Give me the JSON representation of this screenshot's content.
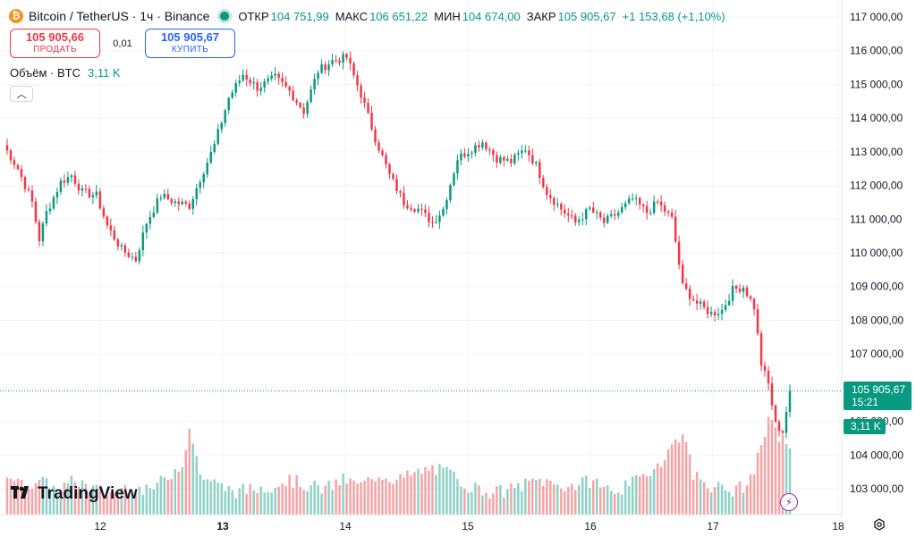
{
  "header": {
    "symbol_title": "Bitcoin / TetherUS · 1ч · Binance",
    "logo_glyph": "₿",
    "ohlc": [
      {
        "label": "ОТКР",
        "value": "104 751,99"
      },
      {
        "label": "МАКС",
        "value": "106 651,22"
      },
      {
        "label": "МИН",
        "value": "104 674,00"
      },
      {
        "label": "ЗАКР",
        "value": "105 905,67"
      }
    ],
    "change": "+1 153,68 (+1,10%)"
  },
  "trade": {
    "sell_price": "105 905,66",
    "sell_label": "ПРОДАТЬ",
    "spread": "0,01",
    "buy_price": "105 905,67",
    "buy_label": "КУПИТЬ"
  },
  "volume_legend": {
    "label": "Объём · BTC",
    "value": "3,11 K"
  },
  "price_tag": {
    "price": "105 905,67",
    "time": "15:21"
  },
  "volume_tag": "3,11 K",
  "brand": {
    "mark": "17",
    "name": "TradingView"
  },
  "colors": {
    "up": "#089981",
    "down": "#f23645",
    "up_volume": "#8fd1c6",
    "down_volume": "#f5a3a5",
    "grid": "#f0f3fa"
  },
  "chart_data": {
    "type": "candlestick",
    "timeframe": "1h",
    "last_price": 105905.67,
    "y_axis": {
      "ylim": [
        102600,
        117300
      ],
      "ticks": [
        "103 000,00",
        "104 000,00",
        "105 000,00",
        "106 000,00",
        "107 000,00",
        "108 000,00",
        "109 000,00",
        "110 000,00",
        "111 000,00",
        "112 000,00",
        "113 000,00",
        "114 000,00",
        "115 000,00",
        "116 000,00",
        "117 000,00"
      ]
    },
    "x_axis": {
      "tick_labels": [
        "12",
        "13",
        "14",
        "15",
        "16",
        "17",
        "18"
      ],
      "bold": [
        "13"
      ]
    },
    "price_anchors": [
      [
        0,
        113200
      ],
      [
        4,
        112500
      ],
      [
        8,
        111500
      ],
      [
        10,
        110400
      ],
      [
        12,
        111200
      ],
      [
        16,
        112100
      ],
      [
        19,
        112300
      ],
      [
        22,
        111800
      ],
      [
        26,
        111700
      ],
      [
        29,
        110800
      ],
      [
        33,
        110100
      ],
      [
        37,
        109800
      ],
      [
        40,
        110900
      ],
      [
        44,
        111700
      ],
      [
        48,
        111500
      ],
      [
        52,
        111400
      ],
      [
        55,
        112200
      ],
      [
        59,
        113200
      ],
      [
        63,
        114600
      ],
      [
        67,
        115300
      ],
      [
        71,
        114900
      ],
      [
        76,
        115200
      ],
      [
        80,
        114800
      ],
      [
        84,
        114200
      ],
      [
        88,
        115400
      ],
      [
        92,
        115700
      ],
      [
        96,
        115800
      ],
      [
        100,
        114700
      ],
      [
        104,
        113400
      ],
      [
        108,
        112300
      ],
      [
        112,
        111500
      ],
      [
        116,
        111300
      ],
      [
        120,
        110900
      ],
      [
        123,
        111300
      ],
      [
        127,
        112800
      ],
      [
        131,
        113100
      ],
      [
        134,
        113300
      ],
      [
        138,
        112800
      ],
      [
        142,
        112700
      ],
      [
        146,
        113100
      ],
      [
        149,
        112600
      ],
      [
        152,
        111800
      ],
      [
        156,
        111300
      ],
      [
        160,
        110900
      ],
      [
        164,
        111300
      ],
      [
        168,
        110900
      ],
      [
        172,
        111200
      ],
      [
        176,
        111600
      ],
      [
        180,
        111200
      ],
      [
        183,
        111500
      ],
      [
        187,
        111000
      ],
      [
        190,
        109000
      ],
      [
        194,
        108500
      ],
      [
        198,
        108200
      ],
      [
        201,
        108300
      ],
      [
        204,
        108900
      ],
      [
        207,
        109000
      ],
      [
        210,
        108400
      ],
      [
        212,
        106700
      ],
      [
        214,
        106100
      ],
      [
        216,
        104900
      ],
      [
        218,
        104700
      ],
      [
        220,
        105906
      ]
    ],
    "volume_anchors": [
      [
        0,
        0.4
      ],
      [
        5,
        0.25
      ],
      [
        10,
        0.3
      ],
      [
        15,
        0.2
      ],
      [
        20,
        0.3
      ],
      [
        25,
        0.22
      ],
      [
        30,
        0.18
      ],
      [
        35,
        0.25
      ],
      [
        40,
        0.2
      ],
      [
        45,
        0.3
      ],
      [
        50,
        0.45
      ],
      [
        52,
        0.75
      ],
      [
        55,
        0.35
      ],
      [
        60,
        0.25
      ],
      [
        65,
        0.2
      ],
      [
        70,
        0.22
      ],
      [
        75,
        0.25
      ],
      [
        80,
        0.3
      ],
      [
        85,
        0.25
      ],
      [
        90,
        0.22
      ],
      [
        95,
        0.3
      ],
      [
        100,
        0.25
      ],
      [
        105,
        0.35
      ],
      [
        110,
        0.3
      ],
      [
        115,
        0.35
      ],
      [
        120,
        0.4
      ],
      [
        125,
        0.35
      ],
      [
        130,
        0.25
      ],
      [
        135,
        0.2
      ],
      [
        140,
        0.2
      ],
      [
        145,
        0.25
      ],
      [
        150,
        0.3
      ],
      [
        155,
        0.25
      ],
      [
        160,
        0.25
      ],
      [
        165,
        0.3
      ],
      [
        170,
        0.2
      ],
      [
        175,
        0.25
      ],
      [
        180,
        0.35
      ],
      [
        185,
        0.5
      ],
      [
        190,
        0.72
      ],
      [
        193,
        0.35
      ],
      [
        198,
        0.25
      ],
      [
        203,
        0.2
      ],
      [
        208,
        0.25
      ],
      [
        212,
        0.55
      ],
      [
        214,
        0.85
      ],
      [
        216,
        0.7
      ],
      [
        218,
        0.65
      ],
      [
        220,
        0.6
      ]
    ]
  }
}
